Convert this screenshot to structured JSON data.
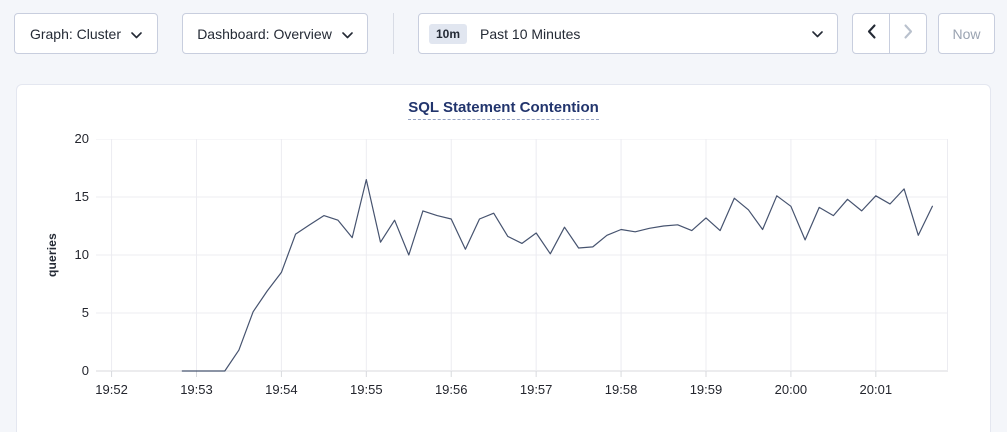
{
  "toolbar": {
    "graph_dropdown": {
      "label": "Graph: Cluster"
    },
    "dashboard_dropdown": {
      "label": "Dashboard: Overview"
    },
    "time_picker": {
      "badge": "10m",
      "label": "Past 10 Minutes"
    },
    "now_button": {
      "label": "Now"
    },
    "icons": {
      "graph_chevron": "chevron-down",
      "dashboard_chevron": "chevron-down",
      "time_chevron": "chevron-down",
      "prev": "chevron-left",
      "next": "chevron-right"
    }
  },
  "colors": {
    "page_bg": "#f4f6fa",
    "panel_bg": "#ffffff",
    "line": "#46536f",
    "grid": "#ececf1",
    "baseline": "#d8dade",
    "title": "#22356d",
    "button_border": "#c8cede",
    "disabled_text": "#9aa3b1"
  },
  "chart_data": {
    "type": "line",
    "title": "SQL Statement Contention",
    "xlabel": "",
    "ylabel": "queries",
    "ylim": [
      0,
      20
    ],
    "y_ticks": [
      0,
      5,
      10,
      15,
      20
    ],
    "x_ticks": [
      "19:52",
      "19:53",
      "19:54",
      "19:55",
      "19:56",
      "19:57",
      "19:58",
      "19:59",
      "20:00",
      "20:01"
    ],
    "x_range": [
      "19:51:49",
      "20:01:51"
    ],
    "grid": true,
    "legend_position": "none",
    "series": [
      {
        "name": "queries",
        "color": "#46536f",
        "x_start_time": "19:52:50",
        "x_interval_seconds": 10,
        "values": [
          0,
          0,
          0,
          0,
          1.8,
          5.1,
          6.9,
          8.5,
          11.8,
          12.6,
          13.4,
          13.0,
          11.5,
          16.5,
          11.1,
          13.0,
          10.0,
          13.8,
          13.4,
          13.1,
          10.5,
          13.1,
          13.6,
          11.6,
          11.0,
          11.9,
          10.1,
          12.4,
          10.6,
          10.7,
          11.7,
          12.2,
          12.0,
          12.3,
          12.5,
          12.6,
          12.1,
          13.2,
          12.1,
          14.9,
          13.9,
          12.2,
          15.1,
          14.2,
          11.3,
          14.1,
          13.4,
          14.8,
          13.8,
          15.1,
          14.4,
          15.7,
          11.7,
          14.2
        ]
      }
    ]
  }
}
